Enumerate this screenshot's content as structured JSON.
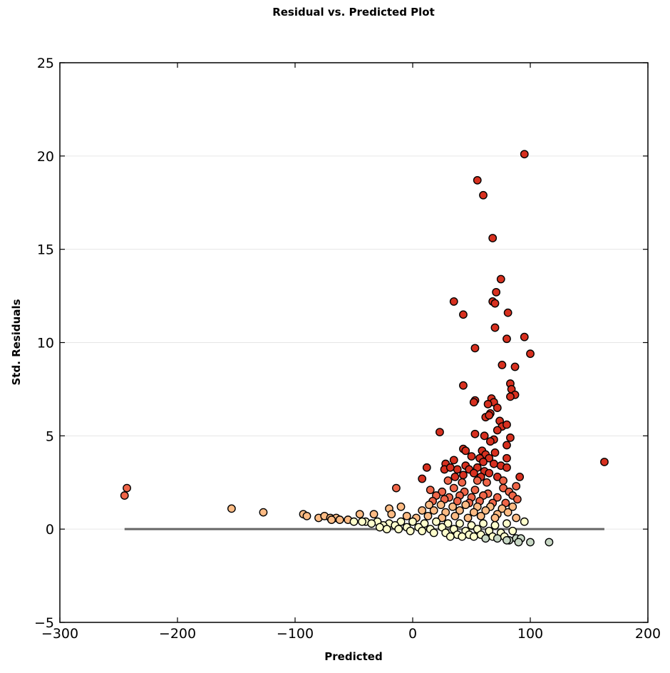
{
  "chart_data": {
    "type": "scatter",
    "title": "Residual vs. Predicted Plot",
    "xlabel": "Predicted",
    "ylabel": "Std. Residuals",
    "xlim": [
      -300,
      200
    ],
    "ylim": [
      -5,
      25
    ],
    "xticks": [
      -300,
      -200,
      -100,
      0,
      100,
      200
    ],
    "yticks": [
      -5,
      0,
      5,
      10,
      15,
      20,
      25
    ],
    "xtick_labels": [
      "−300",
      "−200",
      "−100",
      "0",
      "100",
      "200"
    ],
    "ytick_labels": [
      "−5",
      "0",
      "5",
      "10",
      "15",
      "20",
      "25"
    ],
    "grid": "horizontal",
    "zero_line": {
      "y": 0,
      "x_range": [
        -245,
        163
      ],
      "color": "#666666"
    },
    "colors": {
      "high": "#d7301f",
      "mid": "#ef6548",
      "low": "#fdbb84",
      "near_zero": "#ffffcc",
      "negative": "#c7d7c4"
    },
    "points": [
      [
        95,
        20.1
      ],
      [
        55,
        18.7
      ],
      [
        60,
        17.9
      ],
      [
        68,
        15.6
      ],
      [
        75,
        13.4
      ],
      [
        71,
        12.7
      ],
      [
        35,
        12.2
      ],
      [
        68,
        12.2
      ],
      [
        70,
        12.1
      ],
      [
        43,
        11.5
      ],
      [
        81,
        11.6
      ],
      [
        70,
        10.8
      ],
      [
        80,
        10.2
      ],
      [
        95,
        10.3
      ],
      [
        53,
        9.7
      ],
      [
        100,
        9.4
      ],
      [
        76,
        8.8
      ],
      [
        87,
        8.7
      ],
      [
        43,
        7.7
      ],
      [
        83,
        7.8
      ],
      [
        84,
        7.5
      ],
      [
        87,
        7.2
      ],
      [
        83,
        7.1
      ],
      [
        53,
        6.9
      ],
      [
        52,
        6.8
      ],
      [
        67,
        7.0
      ],
      [
        69,
        6.8
      ],
      [
        64,
        6.7
      ],
      [
        72,
        6.5
      ],
      [
        66,
        6.2
      ],
      [
        62,
        6.0
      ],
      [
        65,
        6.1
      ],
      [
        74,
        5.8
      ],
      [
        76,
        5.5
      ],
      [
        80,
        5.6
      ],
      [
        72,
        5.3
      ],
      [
        23,
        5.2
      ],
      [
        53,
        5.1
      ],
      [
        61,
        5.0
      ],
      [
        83,
        4.9
      ],
      [
        69,
        4.8
      ],
      [
        66,
        4.7
      ],
      [
        80,
        4.5
      ],
      [
        43,
        4.3
      ],
      [
        45,
        4.2
      ],
      [
        59,
        4.2
      ],
      [
        62,
        4.0
      ],
      [
        70,
        4.1
      ],
      [
        50,
        3.9
      ],
      [
        57,
        3.8
      ],
      [
        65,
        3.8
      ],
      [
        35,
        3.7
      ],
      [
        80,
        3.8
      ],
      [
        60,
        3.6
      ],
      [
        163,
        3.6
      ],
      [
        28,
        3.5
      ],
      [
        45,
        3.4
      ],
      [
        55,
        3.3
      ],
      [
        69,
        3.5
      ],
      [
        75,
        3.4
      ],
      [
        38,
        3.2
      ],
      [
        12,
        3.3
      ],
      [
        27,
        3.2
      ],
      [
        32,
        3.3
      ],
      [
        48,
        3.2
      ],
      [
        61,
        3.1
      ],
      [
        80,
        3.3
      ],
      [
        52,
        3.0
      ],
      [
        65,
        3.0
      ],
      [
        43,
        2.9
      ],
      [
        58,
        2.8
      ],
      [
        36,
        2.8
      ],
      [
        8,
        2.7
      ],
      [
        72,
        2.8
      ],
      [
        91,
        2.8
      ],
      [
        30,
        2.6
      ],
      [
        42,
        2.5
      ],
      [
        55,
        2.6
      ],
      [
        63,
        2.5
      ],
      [
        77,
        2.6
      ],
      [
        -243,
        2.2
      ],
      [
        -245,
        1.8
      ],
      [
        -14,
        2.2
      ],
      [
        15,
        2.1
      ],
      [
        25,
        2.0
      ],
      [
        35,
        2.2
      ],
      [
        44,
        2.0
      ],
      [
        53,
        2.1
      ],
      [
        64,
        1.9
      ],
      [
        77,
        2.2
      ],
      [
        82,
        2.0
      ],
      [
        88,
        2.3
      ],
      [
        20,
        1.8
      ],
      [
        31,
        1.7
      ],
      [
        40,
        1.8
      ],
      [
        50,
        1.7
      ],
      [
        60,
        1.8
      ],
      [
        72,
        1.7
      ],
      [
        85,
        1.8
      ],
      [
        89,
        1.6
      ],
      [
        17,
        1.5
      ],
      [
        27,
        1.6
      ],
      [
        38,
        1.5
      ],
      [
        48,
        1.4
      ],
      [
        57,
        1.5
      ],
      [
        68,
        1.4
      ],
      [
        79,
        1.4
      ],
      [
        14,
        1.3
      ],
      [
        24,
        1.3
      ],
      [
        34,
        1.2
      ],
      [
        45,
        1.3
      ],
      [
        55,
        1.2
      ],
      [
        66,
        1.2
      ],
      [
        76,
        1.1
      ],
      [
        85,
        1.2
      ],
      [
        -154,
        1.1
      ],
      [
        -127,
        0.9
      ],
      [
        -20,
        1.1
      ],
      [
        -10,
        1.2
      ],
      [
        8,
        1.0
      ],
      [
        18,
        1.0
      ],
      [
        28,
        0.9
      ],
      [
        40,
        1.0
      ],
      [
        52,
        0.9
      ],
      [
        62,
        1.0
      ],
      [
        72,
        0.8
      ],
      [
        81,
        0.9
      ],
      [
        -93,
        0.8
      ],
      [
        -90,
        0.7
      ],
      [
        -80,
        0.6
      ],
      [
        -75,
        0.7
      ],
      [
        -70,
        0.6
      ],
      [
        -65,
        0.6
      ],
      [
        -45,
        0.8
      ],
      [
        -33,
        0.8
      ],
      [
        -18,
        0.8
      ],
      [
        -5,
        0.7
      ],
      [
        3,
        0.6
      ],
      [
        13,
        0.7
      ],
      [
        25,
        0.6
      ],
      [
        36,
        0.7
      ],
      [
        47,
        0.6
      ],
      [
        58,
        0.7
      ],
      [
        70,
        0.6
      ],
      [
        88,
        0.6
      ],
      [
        -69,
        0.5
      ],
      [
        -62,
        0.5
      ],
      [
        -55,
        0.5
      ],
      [
        -50,
        0.4
      ],
      [
        -40,
        0.4
      ],
      [
        -30,
        0.4
      ],
      [
        -20,
        0.3
      ],
      [
        -10,
        0.4
      ],
      [
        0,
        0.4
      ],
      [
        10,
        0.3
      ],
      [
        20,
        0.4
      ],
      [
        30,
        0.3
      ],
      [
        40,
        0.3
      ],
      [
        50,
        0.2
      ],
      [
        60,
        0.3
      ],
      [
        70,
        0.2
      ],
      [
        80,
        0.3
      ],
      [
        95,
        0.4
      ],
      [
        -43,
        0.4
      ],
      [
        -35,
        0.3
      ],
      [
        -25,
        0.2
      ],
      [
        -15,
        0.2
      ],
      [
        -5,
        0.1
      ],
      [
        5,
        0.1
      ],
      [
        15,
        0.0
      ],
      [
        25,
        0.1
      ],
      [
        35,
        0.0
      ],
      [
        45,
        -0.1
      ],
      [
        55,
        0.0
      ],
      [
        65,
        -0.1
      ],
      [
        75,
        -0.2
      ],
      [
        85,
        -0.1
      ],
      [
        -28,
        0.1
      ],
      [
        -22,
        0.0
      ],
      [
        -12,
        0.0
      ],
      [
        -2,
        -0.1
      ],
      [
        8,
        -0.1
      ],
      [
        18,
        -0.2
      ],
      [
        28,
        -0.2
      ],
      [
        38,
        -0.3
      ],
      [
        48,
        -0.3
      ],
      [
        58,
        -0.3
      ],
      [
        68,
        -0.4
      ],
      [
        78,
        -0.4
      ],
      [
        88,
        -0.5
      ],
      [
        32,
        -0.4
      ],
      [
        42,
        -0.4
      ],
      [
        52,
        -0.4
      ],
      [
        62,
        -0.5
      ],
      [
        72,
        -0.5
      ],
      [
        82,
        -0.6
      ],
      [
        92,
        -0.5
      ],
      [
        80,
        -0.6
      ],
      [
        90,
        -0.7
      ],
      [
        100,
        -0.7
      ],
      [
        116,
        -0.7
      ]
    ]
  }
}
